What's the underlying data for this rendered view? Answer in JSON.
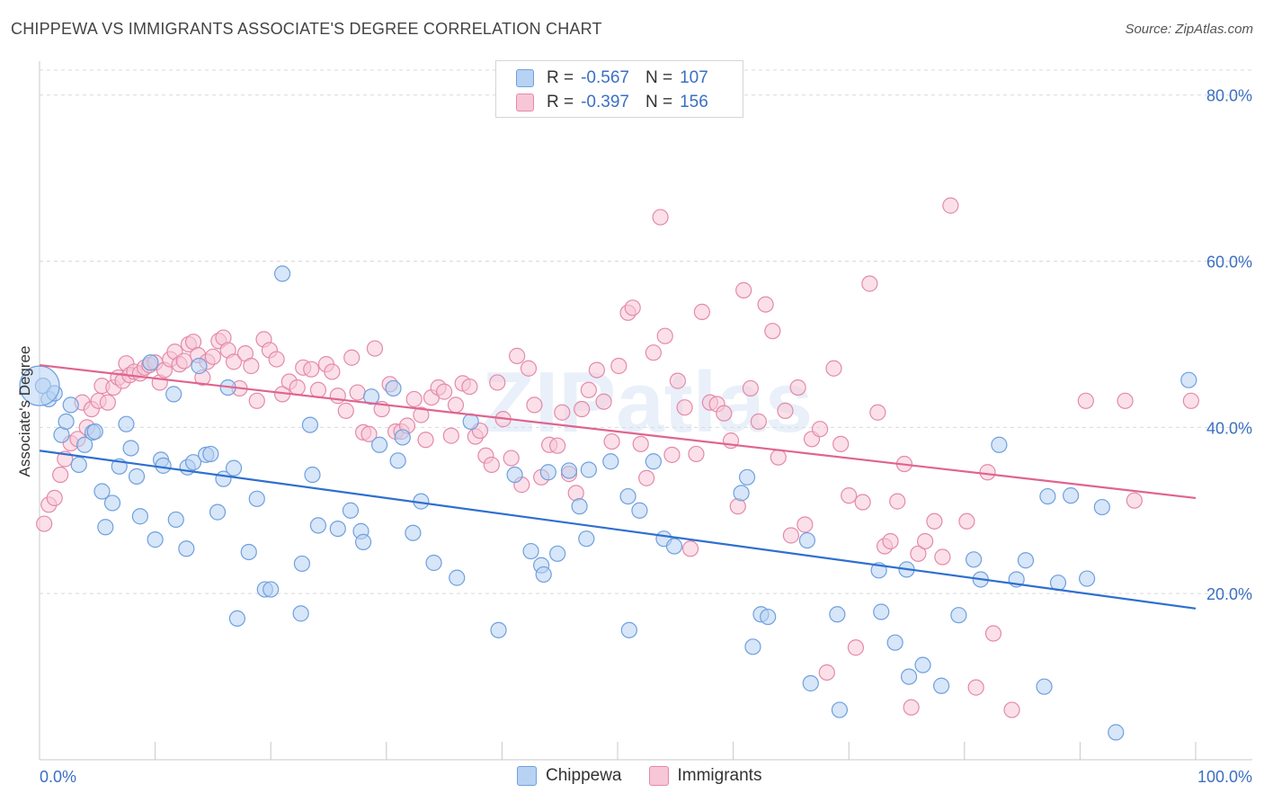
{
  "title": "CHIPPEWA VS IMMIGRANTS ASSOCIATE'S DEGREE CORRELATION CHART",
  "source": "Source: ZipAtlas.com",
  "watermark": "ZIPatlas",
  "legend": {
    "rows": [
      {
        "r_label": "R =",
        "r_value": "-0.567",
        "n_label": "N =",
        "n_value": "107",
        "color": "#b7d2f2",
        "border": "#6fa0de"
      },
      {
        "r_label": "R =",
        "r_value": "-0.397",
        "n_label": "N =",
        "n_value": "156",
        "color": "#f7c6d7",
        "border": "#e48aa9"
      }
    ]
  },
  "bottom_legend": [
    {
      "label": "Chippewa",
      "color": "#b7d2f2",
      "border": "#6fa0de"
    },
    {
      "label": "Immigrants",
      "color": "#f7c6d7",
      "border": "#e48aa9"
    }
  ],
  "chart_data": {
    "type": "scatter",
    "xlabel": "",
    "ylabel": "Associate's Degree",
    "xlim": [
      0,
      100
    ],
    "ylim": [
      0,
      83
    ],
    "x_tick_labels": [
      {
        "value": 0,
        "label": "0.0%"
      },
      {
        "value": 100,
        "label": "100.0%"
      }
    ],
    "y_tick_labels": [
      {
        "value": 20,
        "label": "20.0%"
      },
      {
        "value": 40,
        "label": "40.0%"
      },
      {
        "value": 60,
        "label": "60.0%"
      },
      {
        "value": 80,
        "label": "80.0%"
      }
    ],
    "series": [
      {
        "name": "Chippewa",
        "color": "#6fa0de",
        "fill": "#b7d2f2",
        "line_color": "#2f6fd0",
        "trend": {
          "x0": 0,
          "y0": 37.2,
          "x1": 100,
          "y1": 18.2
        },
        "points": [
          [
            0.3,
            45.0
          ],
          [
            0.8,
            43.4
          ],
          [
            1.3,
            44.1
          ],
          [
            1.9,
            39.1
          ],
          [
            2.3,
            40.7
          ],
          [
            2.7,
            42.7
          ],
          [
            3.4,
            35.5
          ],
          [
            3.9,
            37.9
          ],
          [
            4.6,
            39.4
          ],
          [
            4.8,
            39.5
          ],
          [
            5.4,
            32.3
          ],
          [
            5.7,
            28.0
          ],
          [
            6.3,
            30.9
          ],
          [
            6.9,
            35.3
          ],
          [
            7.5,
            40.4
          ],
          [
            7.9,
            37.5
          ],
          [
            8.4,
            34.1
          ],
          [
            8.7,
            29.3
          ],
          [
            9.6,
            47.8
          ],
          [
            10.0,
            26.5
          ],
          [
            10.5,
            36.1
          ],
          [
            10.7,
            35.4
          ],
          [
            11.6,
            44.0
          ],
          [
            11.8,
            28.9
          ],
          [
            12.7,
            25.4
          ],
          [
            12.8,
            35.2
          ],
          [
            13.3,
            35.8
          ],
          [
            13.8,
            47.4
          ],
          [
            14.4,
            36.7
          ],
          [
            14.8,
            36.8
          ],
          [
            15.4,
            29.8
          ],
          [
            15.9,
            33.8
          ],
          [
            16.3,
            44.8
          ],
          [
            16.8,
            35.1
          ],
          [
            17.1,
            17.0
          ],
          [
            18.1,
            25.0
          ],
          [
            18.8,
            31.4
          ],
          [
            19.5,
            20.5
          ],
          [
            20.0,
            20.5
          ],
          [
            21.0,
            58.5
          ],
          [
            22.6,
            17.6
          ],
          [
            22.7,
            23.6
          ],
          [
            23.4,
            40.3
          ],
          [
            23.6,
            34.3
          ],
          [
            24.1,
            28.2
          ],
          [
            25.8,
            27.8
          ],
          [
            26.9,
            30.0
          ],
          [
            27.8,
            27.5
          ],
          [
            28.0,
            26.2
          ],
          [
            28.7,
            43.7
          ],
          [
            29.4,
            37.9
          ],
          [
            30.6,
            44.7
          ],
          [
            31.0,
            36.0
          ],
          [
            31.4,
            38.8
          ],
          [
            32.3,
            27.3
          ],
          [
            33.0,
            31.1
          ],
          [
            34.1,
            23.7
          ],
          [
            36.1,
            21.9
          ],
          [
            37.3,
            40.7
          ],
          [
            39.7,
            15.6
          ],
          [
            41.1,
            34.3
          ],
          [
            42.5,
            25.1
          ],
          [
            43.4,
            23.4
          ],
          [
            43.6,
            22.3
          ],
          [
            44.0,
            34.6
          ],
          [
            44.8,
            24.8
          ],
          [
            45.8,
            34.8
          ],
          [
            46.7,
            30.5
          ],
          [
            47.3,
            26.6
          ],
          [
            47.5,
            34.9
          ],
          [
            49.4,
            35.9
          ],
          [
            50.9,
            31.7
          ],
          [
            51.0,
            15.6
          ],
          [
            51.9,
            30.0
          ],
          [
            53.1,
            35.9
          ],
          [
            54.0,
            26.6
          ],
          [
            54.9,
            25.7
          ],
          [
            60.7,
            32.1
          ],
          [
            61.2,
            34.0
          ],
          [
            61.7,
            13.6
          ],
          [
            62.4,
            17.5
          ],
          [
            63.0,
            17.2
          ],
          [
            66.4,
            26.4
          ],
          [
            66.7,
            9.2
          ],
          [
            69.0,
            17.5
          ],
          [
            69.2,
            6.0
          ],
          [
            72.6,
            22.8
          ],
          [
            72.8,
            17.8
          ],
          [
            74.0,
            14.1
          ],
          [
            75.0,
            22.9
          ],
          [
            75.2,
            10.0
          ],
          [
            76.4,
            11.4
          ],
          [
            78.0,
            8.9
          ],
          [
            79.5,
            17.4
          ],
          [
            80.8,
            24.1
          ],
          [
            81.4,
            21.7
          ],
          [
            83.0,
            37.9
          ],
          [
            84.5,
            21.7
          ],
          [
            85.3,
            24.0
          ],
          [
            86.9,
            8.8
          ],
          [
            87.2,
            31.7
          ],
          [
            88.1,
            21.3
          ],
          [
            89.2,
            31.8
          ],
          [
            90.6,
            21.8
          ],
          [
            91.9,
            30.4
          ],
          [
            93.1,
            3.3
          ],
          [
            99.4,
            45.7
          ]
        ]
      },
      {
        "name": "Immigrants",
        "color": "#e48aa9",
        "fill": "#f7c6d7",
        "line_color": "#e0648f",
        "trend": {
          "x0": 0,
          "y0": 47.5,
          "x1": 100,
          "y1": 31.5
        },
        "points": [
          [
            0.4,
            28.4
          ],
          [
            0.8,
            30.7
          ],
          [
            1.3,
            31.5
          ],
          [
            1.8,
            34.3
          ],
          [
            2.2,
            36.2
          ],
          [
            2.7,
            38.1
          ],
          [
            3.3,
            38.6
          ],
          [
            3.7,
            43.0
          ],
          [
            4.1,
            40.0
          ],
          [
            4.5,
            42.2
          ],
          [
            5.1,
            43.2
          ],
          [
            5.4,
            45.0
          ],
          [
            5.9,
            43.0
          ],
          [
            6.4,
            44.8
          ],
          [
            6.8,
            46.0
          ],
          [
            7.2,
            45.6
          ],
          [
            7.5,
            47.7
          ],
          [
            7.8,
            46.3
          ],
          [
            8.2,
            46.7
          ],
          [
            8.7,
            46.5
          ],
          [
            9.1,
            47.2
          ],
          [
            9.5,
            47.5
          ],
          [
            10.0,
            47.8
          ],
          [
            10.4,
            45.4
          ],
          [
            10.8,
            46.9
          ],
          [
            11.3,
            48.2
          ],
          [
            11.7,
            49.1
          ],
          [
            12.1,
            47.6
          ],
          [
            12.5,
            48.0
          ],
          [
            12.9,
            50.0
          ],
          [
            13.3,
            50.3
          ],
          [
            13.7,
            48.7
          ],
          [
            14.1,
            46.0
          ],
          [
            14.5,
            47.9
          ],
          [
            15.0,
            48.5
          ],
          [
            15.5,
            50.4
          ],
          [
            15.9,
            50.8
          ],
          [
            16.3,
            49.3
          ],
          [
            16.8,
            47.9
          ],
          [
            17.3,
            44.7
          ],
          [
            17.8,
            48.9
          ],
          [
            18.3,
            47.4
          ],
          [
            18.8,
            43.2
          ],
          [
            19.4,
            50.6
          ],
          [
            19.9,
            49.3
          ],
          [
            20.5,
            48.2
          ],
          [
            21.0,
            44.0
          ],
          [
            21.6,
            45.5
          ],
          [
            22.3,
            44.8
          ],
          [
            22.8,
            47.2
          ],
          [
            23.5,
            47.0
          ],
          [
            24.1,
            44.5
          ],
          [
            24.8,
            47.6
          ],
          [
            25.3,
            46.7
          ],
          [
            25.8,
            43.8
          ],
          [
            26.5,
            42.0
          ],
          [
            27.0,
            48.4
          ],
          [
            27.5,
            44.2
          ],
          [
            28.0,
            39.4
          ],
          [
            28.5,
            39.2
          ],
          [
            29.0,
            49.5
          ],
          [
            29.6,
            42.2
          ],
          [
            30.3,
            45.2
          ],
          [
            30.8,
            39.5
          ],
          [
            31.3,
            39.5
          ],
          [
            31.8,
            40.2
          ],
          [
            32.4,
            43.4
          ],
          [
            33.0,
            41.5
          ],
          [
            33.4,
            38.5
          ],
          [
            33.9,
            43.6
          ],
          [
            34.5,
            44.8
          ],
          [
            35.0,
            44.3
          ],
          [
            35.6,
            39.0
          ],
          [
            36.0,
            42.7
          ],
          [
            36.6,
            45.3
          ],
          [
            37.2,
            44.9
          ],
          [
            37.7,
            38.9
          ],
          [
            38.1,
            39.6
          ],
          [
            38.6,
            36.6
          ],
          [
            39.1,
            35.5
          ],
          [
            39.6,
            45.4
          ],
          [
            40.1,
            41.0
          ],
          [
            40.8,
            36.3
          ],
          [
            41.3,
            48.6
          ],
          [
            41.7,
            33.1
          ],
          [
            42.3,
            47.1
          ],
          [
            42.8,
            42.7
          ],
          [
            43.4,
            34.0
          ],
          [
            44.1,
            37.9
          ],
          [
            44.8,
            37.8
          ],
          [
            45.2,
            41.8
          ],
          [
            45.8,
            34.4
          ],
          [
            46.4,
            32.1
          ],
          [
            46.9,
            42.2
          ],
          [
            47.5,
            44.5
          ],
          [
            48.2,
            46.9
          ],
          [
            48.8,
            43.1
          ],
          [
            49.5,
            38.3
          ],
          [
            50.1,
            47.4
          ],
          [
            50.9,
            53.8
          ],
          [
            51.3,
            54.4
          ],
          [
            52.0,
            38.0
          ],
          [
            52.5,
            33.9
          ],
          [
            53.1,
            49.0
          ],
          [
            53.7,
            65.3
          ],
          [
            54.1,
            51.0
          ],
          [
            54.7,
            36.7
          ],
          [
            55.2,
            45.6
          ],
          [
            55.8,
            42.4
          ],
          [
            56.3,
            25.4
          ],
          [
            56.8,
            36.8
          ],
          [
            57.3,
            53.9
          ],
          [
            58.0,
            43.0
          ],
          [
            58.6,
            42.8
          ],
          [
            59.2,
            41.7
          ],
          [
            59.8,
            38.4
          ],
          [
            60.4,
            30.5
          ],
          [
            60.9,
            56.5
          ],
          [
            61.5,
            44.7
          ],
          [
            62.2,
            40.7
          ],
          [
            62.8,
            54.8
          ],
          [
            63.4,
            51.6
          ],
          [
            63.9,
            36.4
          ],
          [
            64.5,
            42.0
          ],
          [
            65.0,
            27.0
          ],
          [
            65.6,
            44.8
          ],
          [
            66.2,
            28.3
          ],
          [
            66.8,
            38.6
          ],
          [
            67.5,
            39.8
          ],
          [
            68.1,
            10.5
          ],
          [
            68.7,
            47.1
          ],
          [
            69.3,
            38.0
          ],
          [
            70.0,
            31.8
          ],
          [
            70.6,
            13.5
          ],
          [
            71.2,
            31.0
          ],
          [
            71.8,
            57.3
          ],
          [
            72.5,
            41.8
          ],
          [
            73.1,
            25.7
          ],
          [
            73.6,
            26.3
          ],
          [
            74.2,
            31.1
          ],
          [
            74.8,
            35.6
          ],
          [
            75.4,
            6.3
          ],
          [
            76.0,
            24.8
          ],
          [
            76.6,
            26.3
          ],
          [
            77.4,
            28.7
          ],
          [
            78.1,
            24.4
          ],
          [
            78.8,
            66.7
          ],
          [
            80.2,
            28.7
          ],
          [
            81.0,
            8.7
          ],
          [
            82.0,
            34.6
          ],
          [
            82.5,
            15.2
          ],
          [
            84.1,
            6.0
          ],
          [
            90.5,
            43.2
          ],
          [
            93.9,
            43.2
          ],
          [
            94.7,
            31.2
          ],
          [
            99.6,
            43.2
          ]
        ]
      }
    ]
  }
}
